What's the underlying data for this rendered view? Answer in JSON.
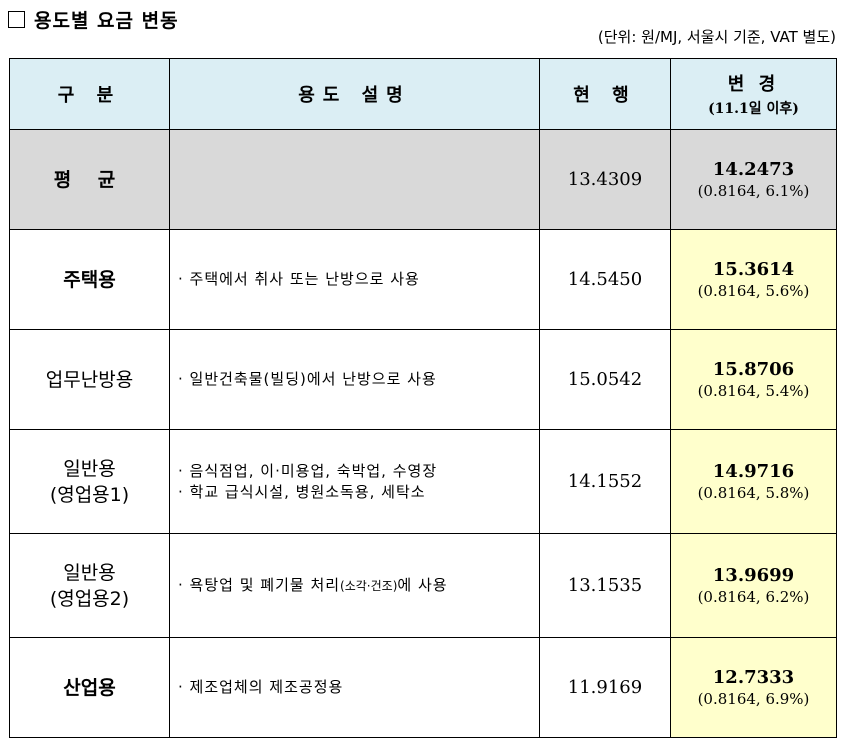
{
  "title": {
    "text": "용도별 요금 변동"
  },
  "unit_note": "(단위: 원/MJ, 서울시 기준, VAT 별도)",
  "headers": {
    "category": "구 분",
    "description": "용도 설명",
    "current": "현 행",
    "change": "변 경",
    "change_sub": "(11.1일 이후)"
  },
  "rows": [
    {
      "category_lines": [
        "평 균"
      ],
      "description_lines": [],
      "current": "13.4309",
      "change_value": "14.2473",
      "change_detail": "(0.8164,  6.1%)"
    },
    {
      "category_lines": [
        "주택용"
      ],
      "description_lines": [
        "· 주택에서 취사 또는 난방으로 사용"
      ],
      "current": "14.5450",
      "change_value": "15.3614",
      "change_detail": "(0.8164,  5.6%)"
    },
    {
      "category_lines": [
        "업무난방용"
      ],
      "description_lines": [
        "· 일반건축물(빌딩)에서 난방으로 사용"
      ],
      "current": "15.0542",
      "change_value": "15.8706",
      "change_detail": "(0.8164,  5.4%)"
    },
    {
      "category_lines": [
        "일반용",
        "(영업용1)"
      ],
      "description_lines": [
        "· 음식점업, 이·미용업, 숙박업, 수영장",
        "· 학교 급식시설, 병원소독용, 세탁소"
      ],
      "current": "14.1552",
      "change_value": "14.9716",
      "change_detail": "(0.8164,  5.8%)"
    },
    {
      "category_lines": [
        "일반용",
        "(영업용2)"
      ],
      "description_main": "· 욕탕업 및 폐기물 처리",
      "description_small": "(소각·건조)",
      "description_tail": "에 사용",
      "current": "13.1535",
      "change_value": "13.9699",
      "change_detail": "(0.8164,  6.2%)"
    },
    {
      "category_lines": [
        "산업용"
      ],
      "description_lines": [
        "· 제조업체의 제조공정용"
      ],
      "current": "11.9169",
      "change_value": "12.7333",
      "change_detail": "(0.8164,  6.9%)"
    }
  ]
}
